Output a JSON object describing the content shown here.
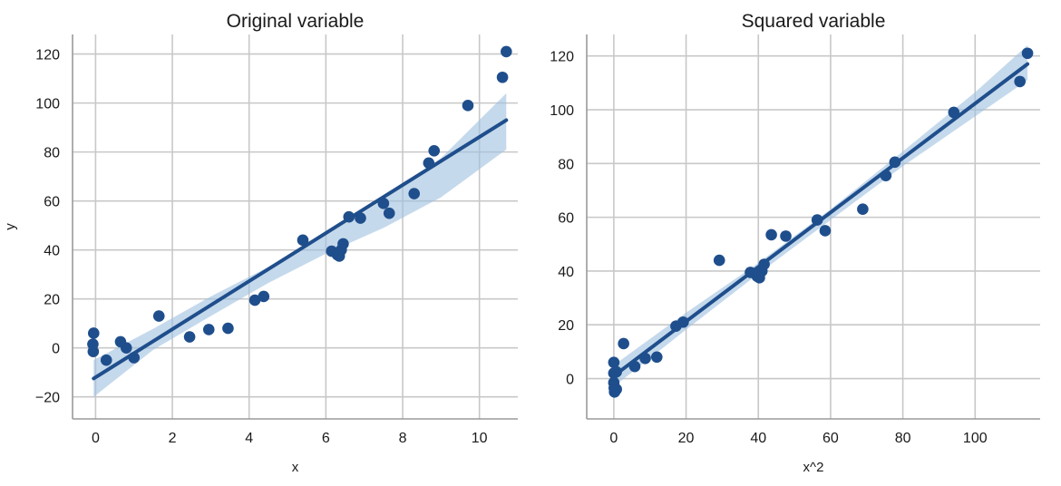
{
  "chart_data": [
    {
      "type": "scatter",
      "title": "Original variable",
      "xlabel": "x",
      "ylabel": "y",
      "xlim": [
        -0.6,
        11.0
      ],
      "ylim": [
        -29,
        128
      ],
      "xticks": [
        0,
        2,
        4,
        6,
        8,
        10
      ],
      "yticks": [
        -20,
        0,
        20,
        40,
        60,
        80,
        100,
        120
      ],
      "xtick_labels": [
        "0",
        "2",
        "4",
        "6",
        "8",
        "10"
      ],
      "ytick_labels": [
        "−20",
        "0",
        "20",
        "40",
        "60",
        "80",
        "100",
        "120"
      ],
      "grid": true,
      "point_color": "#1f4e8c",
      "line_color": "#1f4e8c",
      "band_color": "#9ec0df",
      "series": [
        {
          "points": [
            [
              -0.05,
              6
            ],
            [
              -0.07,
              1.5
            ],
            [
              -0.06,
              -1.5
            ],
            [
              0.28,
              -5
            ],
            [
              0.65,
              2.5
            ],
            [
              0.8,
              0
            ],
            [
              1.0,
              -4
            ],
            [
              1.65,
              13
            ],
            [
              2.45,
              4.5
            ],
            [
              2.95,
              7.5
            ],
            [
              3.45,
              8
            ],
            [
              4.15,
              19.5
            ],
            [
              4.38,
              21
            ],
            [
              5.4,
              44
            ],
            [
              6.15,
              39.5
            ],
            [
              6.3,
              38
            ],
            [
              6.35,
              37.5
            ],
            [
              6.4,
              40
            ],
            [
              6.45,
              42.5
            ],
            [
              6.6,
              53.5
            ],
            [
              6.9,
              53
            ],
            [
              7.5,
              59
            ],
            [
              7.65,
              55
            ],
            [
              8.3,
              63
            ],
            [
              8.68,
              75.5
            ],
            [
              8.82,
              80.5
            ],
            [
              9.7,
              99
            ],
            [
              10.6,
              110.5
            ],
            [
              10.7,
              121
            ]
          ]
        }
      ],
      "regression": {
        "x_start": -0.05,
        "x_end": 10.7,
        "y_start": -12.5,
        "y_end": 93
      },
      "ci_band": {
        "x": [
          -0.05,
          1.5,
          3.0,
          4.5,
          6.0,
          7.5,
          9.0,
          10.7
        ],
        "lower": [
          -20,
          -0.8,
          13,
          26.5,
          38.5,
          49,
          61.5,
          81
        ],
        "upper": [
          -5,
          7.8,
          21,
          33,
          46,
          60.5,
          77.5,
          104
        ]
      }
    },
    {
      "type": "scatter",
      "title": "Squared variable",
      "xlabel": "x^2",
      "ylabel": "",
      "xlim": [
        -7.5,
        118
      ],
      "ylim": [
        -15,
        128
      ],
      "xticks": [
        0,
        20,
        40,
        60,
        80,
        100
      ],
      "yticks": [
        0,
        20,
        40,
        60,
        80,
        100,
        120
      ],
      "xtick_labels": [
        "0",
        "20",
        "40",
        "60",
        "80",
        "100"
      ],
      "ytick_labels": [
        "0",
        "20",
        "40",
        "60",
        "80",
        "100",
        "120"
      ],
      "grid": true,
      "point_color": "#1f4e8c",
      "line_color": "#1f4e8c",
      "band_color": "#9ec0df",
      "series": [
        {
          "points": [
            [
              0,
              6
            ],
            [
              0,
              2
            ],
            [
              0,
              -1.5
            ],
            [
              0.1,
              -3.5
            ],
            [
              0.2,
              -5
            ],
            [
              0.7,
              -4
            ],
            [
              0.7,
              2.5
            ],
            [
              2.7,
              13
            ],
            [
              5.8,
              4.5
            ],
            [
              8.7,
              7.5
            ],
            [
              11.9,
              8
            ],
            [
              17.2,
              19.5
            ],
            [
              19.2,
              21
            ],
            [
              29.2,
              44
            ],
            [
              37.8,
              39.5
            ],
            [
              39.7,
              38
            ],
            [
              40.3,
              37.5
            ],
            [
              41.0,
              40
            ],
            [
              41.6,
              42.5
            ],
            [
              43.6,
              53.5
            ],
            [
              47.6,
              53
            ],
            [
              56.3,
              59
            ],
            [
              58.5,
              55
            ],
            [
              68.9,
              63
            ],
            [
              75.3,
              75.5
            ],
            [
              77.8,
              80.5
            ],
            [
              94.1,
              99
            ],
            [
              112.4,
              110.5
            ],
            [
              114.5,
              121
            ]
          ]
        }
      ],
      "regression": {
        "x_start": 0,
        "x_end": 114.5,
        "y_start": 1,
        "y_end": 117
      },
      "ci_band": {
        "x": [
          0,
          20,
          40,
          60,
          80,
          100,
          114.5
        ],
        "lower": [
          -3,
          18.2,
          39,
          59,
          79,
          97.5,
          111
        ],
        "upper": [
          5,
          24.5,
          43,
          63,
          84.5,
          106.5,
          124
        ]
      }
    }
  ]
}
